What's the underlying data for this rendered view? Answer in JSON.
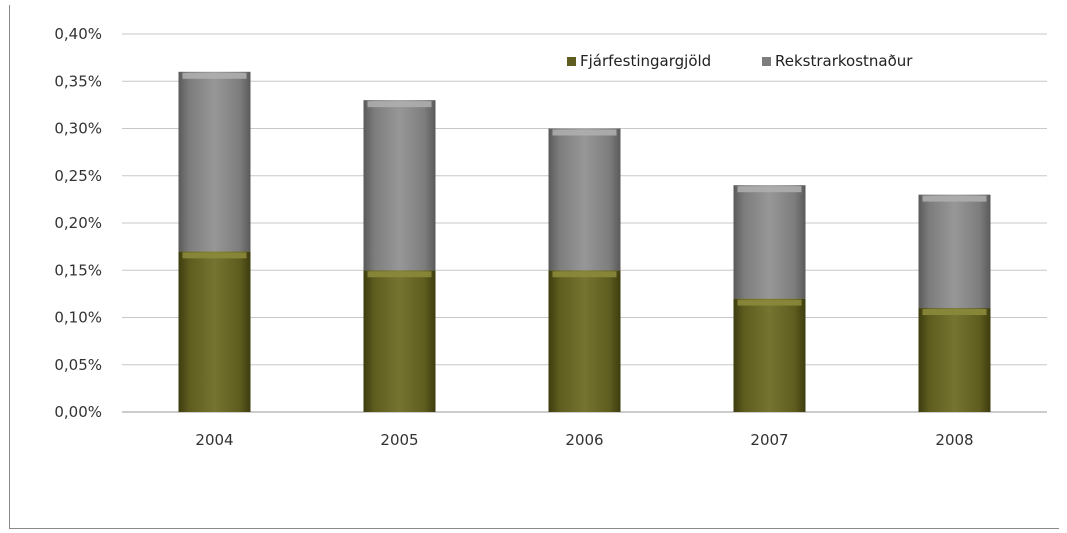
{
  "chart_data": {
    "type": "bar",
    "stacked": true,
    "categories": [
      "2004",
      "2005",
      "2006",
      "2007",
      "2008"
    ],
    "series": [
      {
        "name": "Fjárfestingargjöld",
        "values": [
          0.17,
          0.15,
          0.15,
          0.12,
          0.11
        ],
        "color": "#6b6a23"
      },
      {
        "name": "Rekstrarkostnaður",
        "values": [
          0.19,
          0.18,
          0.15,
          0.12,
          0.12
        ],
        "color": "#8c8c8c"
      }
    ],
    "y_ticks": [
      "0,00%",
      "0,05%",
      "0,10%",
      "0,15%",
      "0,20%",
      "0,25%",
      "0,30%",
      "0,35%",
      "0,40%"
    ],
    "ylim": [
      0,
      0.4
    ],
    "y_unit": "%",
    "grid": true,
    "legend_position": "top-right",
    "title": "",
    "xlabel": "",
    "ylabel": ""
  }
}
